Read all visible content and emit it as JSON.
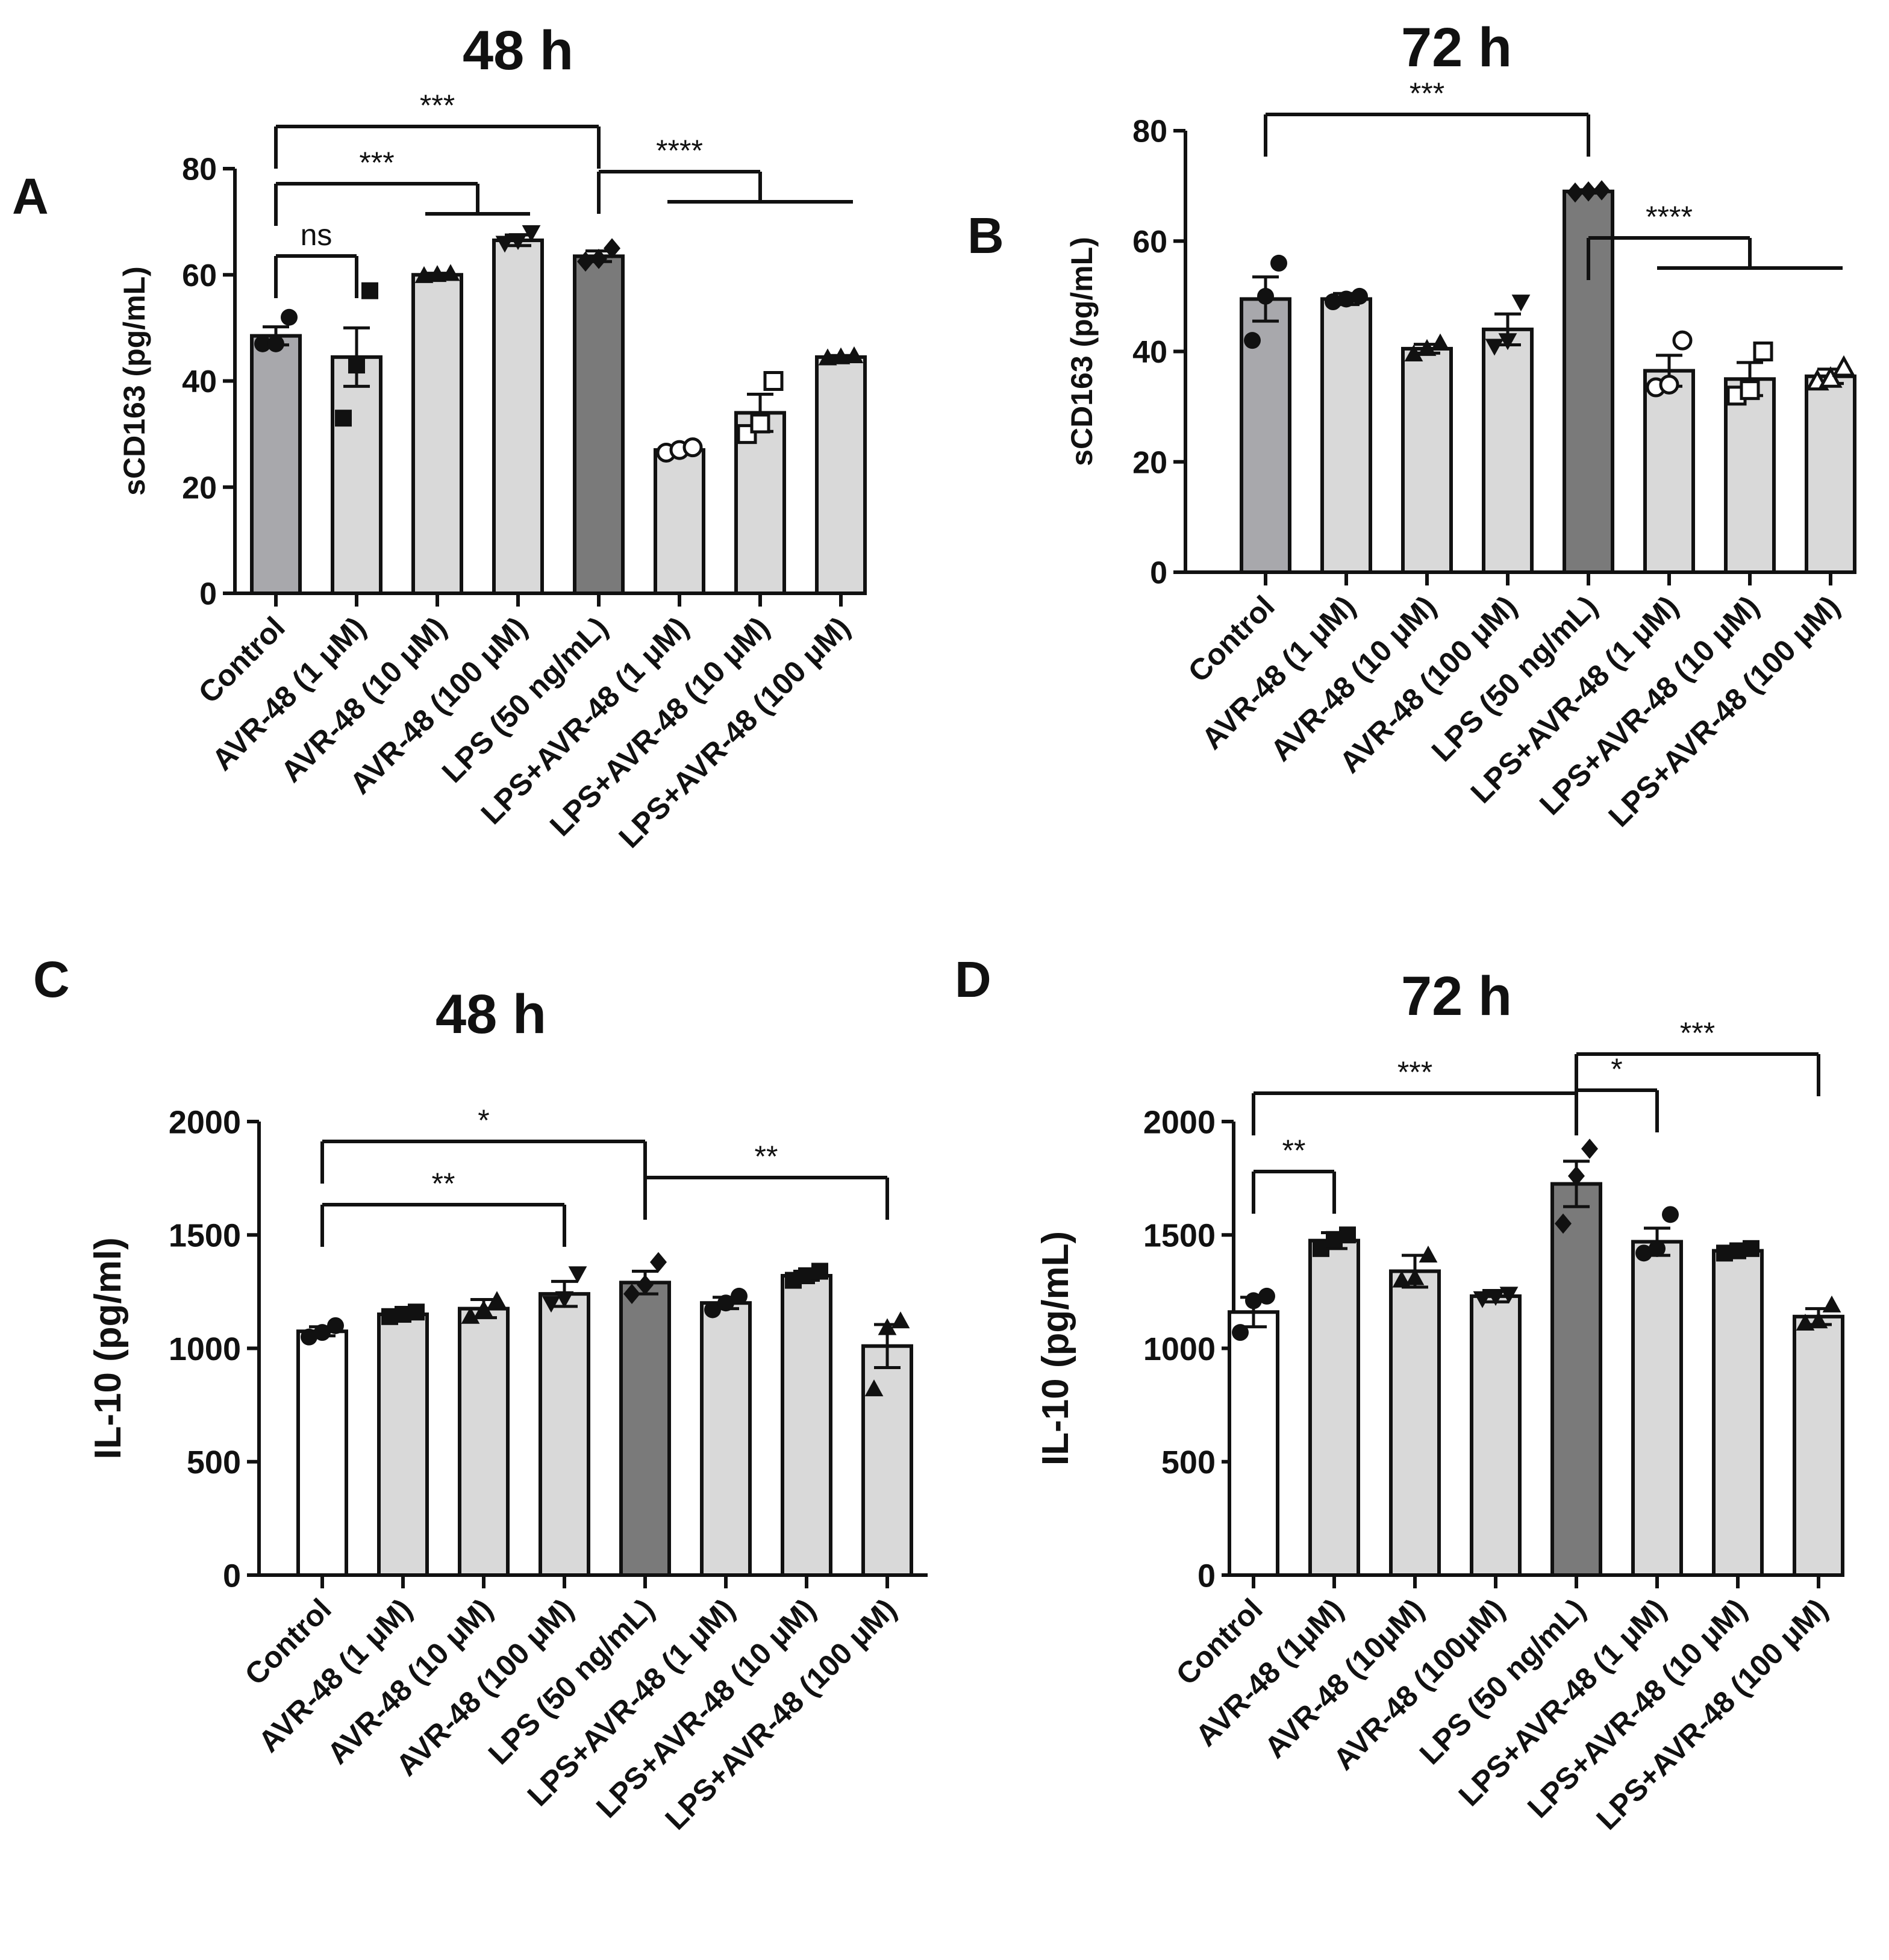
{
  "figure": {
    "colors": {
      "dark_gray": "#7a7a7a",
      "mid_gray": "#a8a8ac",
      "light_gray": "#d9d9d9",
      "white": "#ffffff",
      "ink": "#111111"
    }
  },
  "chart_data": [
    {
      "panel": "A",
      "type": "bar",
      "title": "48 h",
      "xlabel": "",
      "ylabel": "sCD163 (pg/mL)",
      "ylim": [
        0,
        80
      ],
      "yticks": [
        0,
        20,
        40,
        60,
        80
      ],
      "categories": [
        "Control",
        "AVR-48 (1 μM)",
        "AVR-48 (10 μM)",
        "AVR-48 (100 μM)",
        "LPS (50 ng/mL)",
        "LPS+AVR-48 (1 μM)",
        "LPS+AVR-48 (10 μM)",
        "LPS+AVR-48 (100 μM)"
      ],
      "values": [
        48.5,
        44.5,
        60,
        66.5,
        63.5,
        27,
        34,
        44.5
      ],
      "errors": [
        1.7,
        5.5,
        0.3,
        1.0,
        1.0,
        0.8,
        3.5,
        0.3
      ],
      "bar_colors": [
        "#a8a8ac",
        "#d9d9d9",
        "#d9d9d9",
        "#d9d9d9",
        "#7a7a7a",
        "#d9d9d9",
        "#d9d9d9",
        "#d9d9d9"
      ],
      "points": [
        [
          47,
          47,
          52
        ],
        [
          33,
          43,
          57
        ],
        [
          59.8,
          60,
          60.2
        ],
        [
          66,
          66.5,
          68
        ],
        [
          62.5,
          63,
          65
        ],
        [
          26.5,
          27,
          27.5
        ],
        [
          30,
          32,
          40
        ],
        [
          44.3,
          44.5,
          44.7
        ]
      ],
      "markers": [
        "circle",
        "square",
        "triangle",
        "triangle-down",
        "diamond",
        "circle-open",
        "square-open",
        "triangle"
      ],
      "significance": [
        {
          "label": "***",
          "from": 0,
          "to": 4
        },
        {
          "label": "***",
          "from": 0,
          "to": [
            2,
            3
          ]
        },
        {
          "label": "ns",
          "from": 0,
          "to": 1
        },
        {
          "label": "****",
          "from": 4,
          "to": [
            5,
            6,
            7
          ]
        }
      ]
    },
    {
      "panel": "B",
      "type": "bar",
      "title": "72 h",
      "xlabel": "",
      "ylabel": "sCD163 (pg/mL)",
      "ylim": [
        0,
        80
      ],
      "yticks": [
        0,
        20,
        40,
        60,
        80
      ],
      "categories": [
        "Control",
        "AVR-48 (1 μM)",
        "AVR-48 (10 μM)",
        "AVR-48 (100 μM)",
        "LPS (50 ng/mL)",
        "LPS+AVR-48 (1 μM)",
        "LPS+AVR-48 (10 μM)",
        "LPS+AVR-48 (100 μM)"
      ],
      "values": [
        49.5,
        49.5,
        40.5,
        44,
        69,
        36.5,
        35,
        35.5
      ],
      "errors": [
        4.0,
        1.0,
        0.8,
        2.8,
        0.3,
        2.8,
        3.0,
        1.3
      ],
      "bar_colors": [
        "#a8a8ac",
        "#d9d9d9",
        "#d9d9d9",
        "#d9d9d9",
        "#7a7a7a",
        "#d9d9d9",
        "#d9d9d9",
        "#d9d9d9"
      ],
      "points": [
        [
          42,
          50,
          56
        ],
        [
          49,
          49.5,
          50
        ],
        [
          39.5,
          40.5,
          41.5
        ],
        [
          41,
          42,
          49
        ],
        [
          68.8,
          69,
          69.2
        ],
        [
          33.5,
          34,
          42
        ],
        [
          32,
          33,
          40
        ],
        [
          34.5,
          35,
          37
        ]
      ],
      "markers": [
        "circle",
        "circle",
        "triangle",
        "triangle-down",
        "diamond",
        "circle-open",
        "square-open",
        "triangle-open"
      ],
      "significance": [
        {
          "label": "***",
          "from": 0,
          "to": 4
        },
        {
          "label": "****",
          "from": 4,
          "to": [
            5,
            6,
            7
          ]
        }
      ]
    },
    {
      "panel": "C",
      "type": "bar",
      "title": "48 h",
      "xlabel": "",
      "ylabel": "IL-10 (pg/ml)",
      "ylim": [
        0,
        2000
      ],
      "yticks": [
        0,
        500,
        1000,
        1500,
        2000
      ],
      "categories": [
        "Control",
        "AVR-48 (1 μM)",
        "AVR-48 (10 μM)",
        "AVR-48 (100 μM)",
        "LPS (50 ng/mL)",
        "LPS+AVR-48 (1 μM)",
        "LPS+AVR-48 (10 μM)",
        "LPS+AVR-48 (100 μM)"
      ],
      "values": [
        1075,
        1150,
        1175,
        1240,
        1290,
        1200,
        1320,
        1010
      ],
      "errors": [
        20,
        10,
        40,
        55,
        50,
        25,
        20,
        95
      ],
      "bar_colors": [
        "#ffffff",
        "#d9d9d9",
        "#d9d9d9",
        "#d9d9d9",
        "#7a7a7a",
        "#d9d9d9",
        "#d9d9d9",
        "#d9d9d9"
      ],
      "points": [
        [
          1050,
          1070,
          1100
        ],
        [
          1140,
          1150,
          1160
        ],
        [
          1140,
          1170,
          1210
        ],
        [
          1200,
          1220,
          1330
        ],
        [
          1240,
          1280,
          1380
        ],
        [
          1170,
          1200,
          1230
        ],
        [
          1300,
          1320,
          1340
        ],
        [
          820,
          1090,
          1120
        ]
      ],
      "markers": [
        "circle",
        "square",
        "triangle",
        "triangle-down",
        "diamond",
        "circle",
        "square",
        "triangle"
      ],
      "significance": [
        {
          "label": "*",
          "from": 0,
          "to": 4
        },
        {
          "label": "**",
          "from": 0,
          "to": 3
        },
        {
          "label": "**",
          "from": 4,
          "to": 7
        }
      ]
    },
    {
      "panel": "D",
      "type": "bar",
      "title": "72 h",
      "xlabel": "",
      "ylabel": "IL-10 (pg/mL)",
      "ylim": [
        0,
        2000
      ],
      "yticks": [
        0,
        500,
        1000,
        1500,
        2000
      ],
      "categories": [
        "Control",
        "AVR-48 (1μM)",
        "AVR-48 (10μM)",
        "AVR-48 (100μM)",
        "LPS (50 ng/mL)",
        "LPS+AVR-48 (1 μM)",
        "LPS+AVR-48 (10 μM)",
        "LPS+AVR-48 (100 μM)"
      ],
      "values": [
        1160,
        1475,
        1340,
        1230,
        1725,
        1470,
        1430,
        1140
      ],
      "errors": [
        65,
        35,
        70,
        25,
        100,
        60,
        15,
        35
      ],
      "bar_colors": [
        "#ffffff",
        "#d9d9d9",
        "#d9d9d9",
        "#d9d9d9",
        "#7a7a7a",
        "#d9d9d9",
        "#d9d9d9",
        "#d9d9d9"
      ],
      "points": [
        [
          1070,
          1210,
          1230
        ],
        [
          1440,
          1480,
          1500
        ],
        [
          1300,
          1310,
          1410
        ],
        [
          1220,
          1230,
          1240
        ],
        [
          1550,
          1760,
          1880
        ],
        [
          1420,
          1440,
          1590
        ],
        [
          1420,
          1430,
          1440
        ],
        [
          1110,
          1120,
          1190
        ]
      ],
      "markers": [
        "circle",
        "square",
        "triangle",
        "triangle-down",
        "diamond",
        "circle",
        "square",
        "triangle"
      ],
      "significance": [
        {
          "label": "***",
          "from": 0,
          "to": 4
        },
        {
          "label": "**",
          "from": 0,
          "to": 1
        },
        {
          "label": "*",
          "from": 4,
          "to": 5
        },
        {
          "label": "***",
          "from": 4,
          "to": 7
        }
      ]
    }
  ]
}
